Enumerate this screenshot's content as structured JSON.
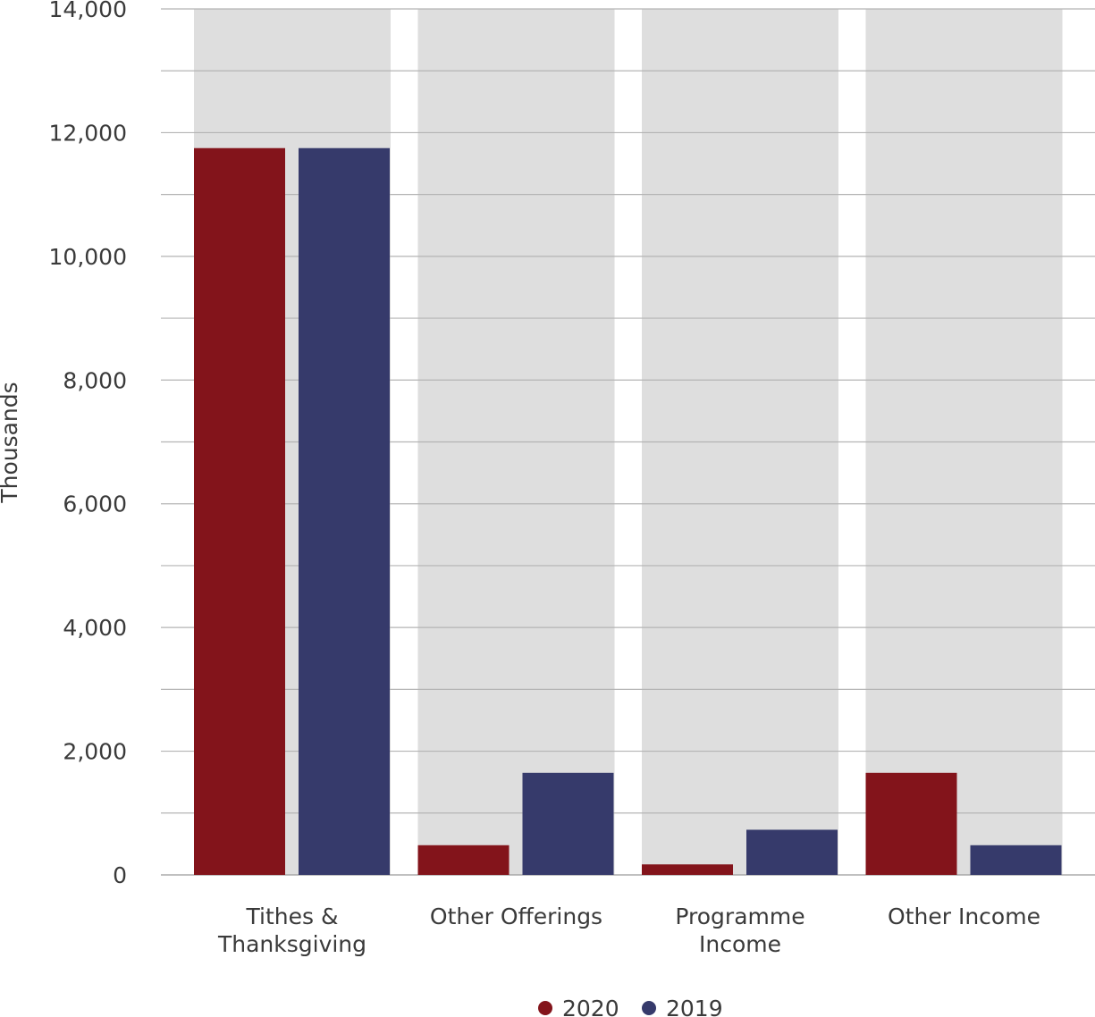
{
  "chart_data": {
    "type": "bar",
    "title": "",
    "xlabel": "",
    "ylabel": "Thousands",
    "ylim": [
      0,
      14000
    ],
    "yticks": [
      0,
      2000,
      4000,
      6000,
      8000,
      10000,
      12000,
      14000
    ],
    "ytick_labels": [
      "0",
      "2,000",
      "4,000",
      "6,000",
      "8,000",
      "10,000",
      "12,000",
      "14,000"
    ],
    "categories": [
      [
        "Tithes &",
        "Thanksgiving"
      ],
      [
        "Other Offerings"
      ],
      [
        "Programme",
        "Income"
      ],
      [
        "Other Income"
      ]
    ],
    "series": [
      {
        "name": "2020",
        "color": "#83141b",
        "values": [
          11750,
          480,
          170,
          1650
        ]
      },
      {
        "name": "2019",
        "color": "#363a6b",
        "values": [
          11750,
          1650,
          730,
          480
        ]
      }
    ],
    "grid": true,
    "band_color": "#dedede",
    "legend_position": "bottom-center"
  }
}
